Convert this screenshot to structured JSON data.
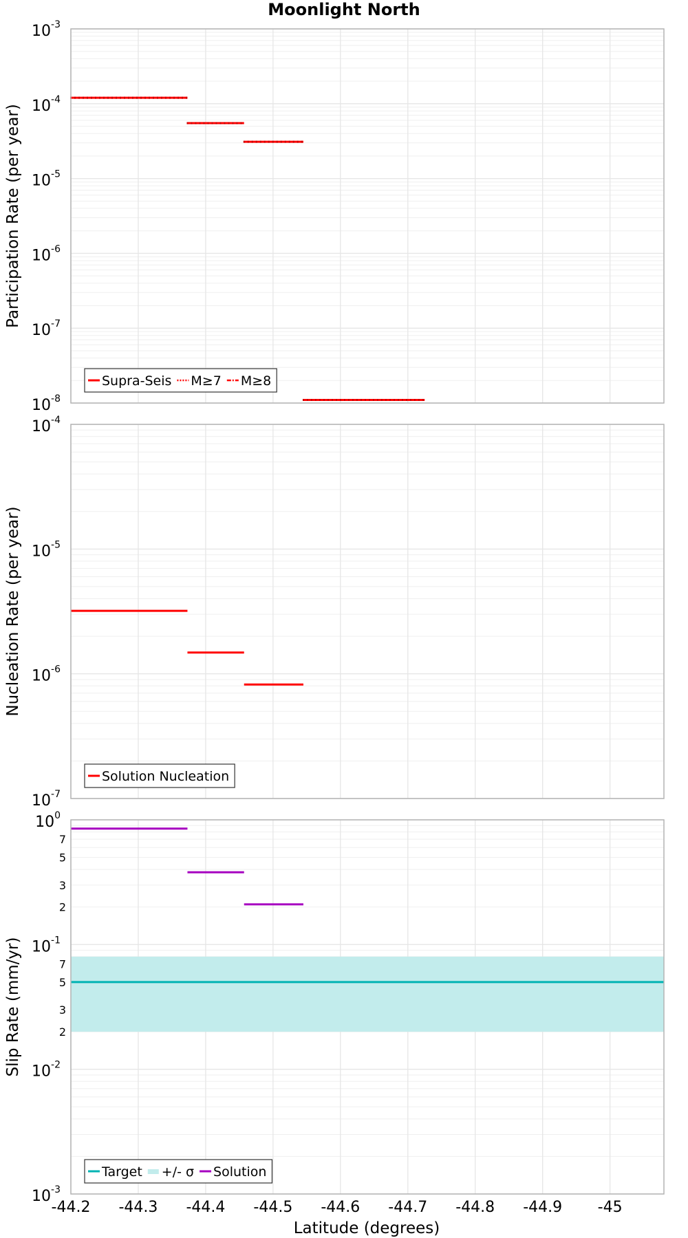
{
  "colors": {
    "participation": "#ff0000",
    "nucleation": "#ff0000",
    "target": "#00b3b3",
    "sigma_band": "#c2ecec",
    "solution": "#a600c0",
    "grid": "#e6e6e6",
    "axis": "#b3b3b3"
  },
  "chart_data": [
    {
      "type": "line",
      "subtype": "step",
      "title": "Moonlight North",
      "xlabel": "",
      "ylabel": "Participation Rate (per year)",
      "yscale": "log",
      "xlim": [
        -44.2,
        -45.08
      ],
      "ylim": [
        1e-08,
        0.001
      ],
      "x_ticks": [
        "-44.2",
        "-44.3",
        "-44.4",
        "-44.5",
        "-44.6",
        "-44.7",
        "-44.8",
        "-44.9",
        "-45"
      ],
      "y_ticks": [
        {
          "value": 0.001,
          "base": "10",
          "exp": "-3"
        },
        {
          "value": 0.0001,
          "base": "10",
          "exp": "-4"
        },
        {
          "value": 1e-05,
          "base": "10",
          "exp": "-5"
        },
        {
          "value": 1e-06,
          "base": "10",
          "exp": "-6"
        },
        {
          "value": 1e-07,
          "base": "10",
          "exp": "-7"
        },
        {
          "value": 1e-08,
          "base": "10",
          "exp": "-8"
        }
      ],
      "grid": true,
      "legend_position": "bottom-left",
      "legend": [
        {
          "label": "Supra-Seis",
          "style": "solid",
          "color": "#ff0000"
        },
        {
          "label": "M≥7",
          "style": "dotted",
          "color": "#ff0000"
        },
        {
          "label": "M≥8",
          "style": "dashdot",
          "color": "#ff0000"
        }
      ],
      "series": [
        {
          "name": "Supra-Seis",
          "color": "#ff0000",
          "segments": [
            {
              "x0": -44.2,
              "x1": -44.373,
              "y": 0.00012
            },
            {
              "x0": -44.373,
              "x1": -44.457,
              "y": 5.5e-05
            },
            {
              "x0": -44.457,
              "x1": -44.545,
              "y": 3.1e-05
            },
            {
              "x0": -44.545,
              "x1": -44.725,
              "y": 1.1e-08
            }
          ]
        }
      ]
    },
    {
      "type": "line",
      "subtype": "step",
      "title": "",
      "xlabel": "",
      "ylabel": "Nucleation Rate (per year)",
      "yscale": "log",
      "xlim": [
        -44.2,
        -45.08
      ],
      "ylim": [
        1e-07,
        0.0001
      ],
      "y_ticks": [
        {
          "value": 0.0001,
          "base": "10",
          "exp": "-4"
        },
        {
          "value": 1e-05,
          "base": "10",
          "exp": "-5"
        },
        {
          "value": 1e-06,
          "base": "10",
          "exp": "-6"
        },
        {
          "value": 1e-07,
          "base": "10",
          "exp": "-7"
        }
      ],
      "grid": true,
      "legend_position": "bottom-left",
      "legend": [
        {
          "label": "Solution Nucleation",
          "style": "solid",
          "color": "#ff0000"
        }
      ],
      "series": [
        {
          "name": "Solution Nucleation",
          "color": "#ff0000",
          "segments": [
            {
              "x0": -44.2,
              "x1": -44.373,
              "y": 3.2e-06
            },
            {
              "x0": -44.373,
              "x1": -44.457,
              "y": 1.48e-06
            },
            {
              "x0": -44.457,
              "x1": -44.545,
              "y": 8.2e-07
            }
          ]
        }
      ]
    },
    {
      "type": "line",
      "subtype": "step",
      "title": "",
      "xlabel": "Latitude (degrees)",
      "ylabel": "Slip Rate (mm/yr)",
      "yscale": "log",
      "xlim": [
        -44.2,
        -45.08
      ],
      "ylim": [
        0.001,
        1
      ],
      "x_ticks": [
        "-44.2",
        "-44.3",
        "-44.4",
        "-44.5",
        "-44.6",
        "-44.7",
        "-44.8",
        "-44.9",
        "-45"
      ],
      "y_ticks": [
        {
          "value": 1,
          "base": "10",
          "exp": "0"
        },
        {
          "value": 0.1,
          "base": "10",
          "exp": "-1"
        },
        {
          "value": 0.01,
          "base": "10",
          "exp": "-2"
        },
        {
          "value": 0.001,
          "base": "10",
          "exp": "-3"
        }
      ],
      "y_minor_labels": [
        "7",
        "5",
        "3",
        "2"
      ],
      "grid": true,
      "legend_position": "bottom-left",
      "legend": [
        {
          "label": "Target",
          "style": "solid",
          "color": "#00b3b3"
        },
        {
          "label": "+/- σ",
          "style": "band",
          "color": "#c2ecec"
        },
        {
          "label": "Solution",
          "style": "solid",
          "color": "#a600c0"
        }
      ],
      "band": {
        "name": "+/- σ",
        "x0": -44.2,
        "x1": -45.08,
        "y_low": 0.02,
        "y_high": 0.08
      },
      "series": [
        {
          "name": "Target",
          "color": "#00b3b3",
          "segments": [
            {
              "x0": -44.2,
              "x1": -45.08,
              "y": 0.05
            }
          ]
        },
        {
          "name": "Solution",
          "color": "#a600c0",
          "segments": [
            {
              "x0": -44.2,
              "x1": -44.373,
              "y": 0.85
            },
            {
              "x0": -44.373,
              "x1": -44.457,
              "y": 0.38
            },
            {
              "x0": -44.457,
              "x1": -44.545,
              "y": 0.21
            }
          ]
        }
      ]
    }
  ]
}
